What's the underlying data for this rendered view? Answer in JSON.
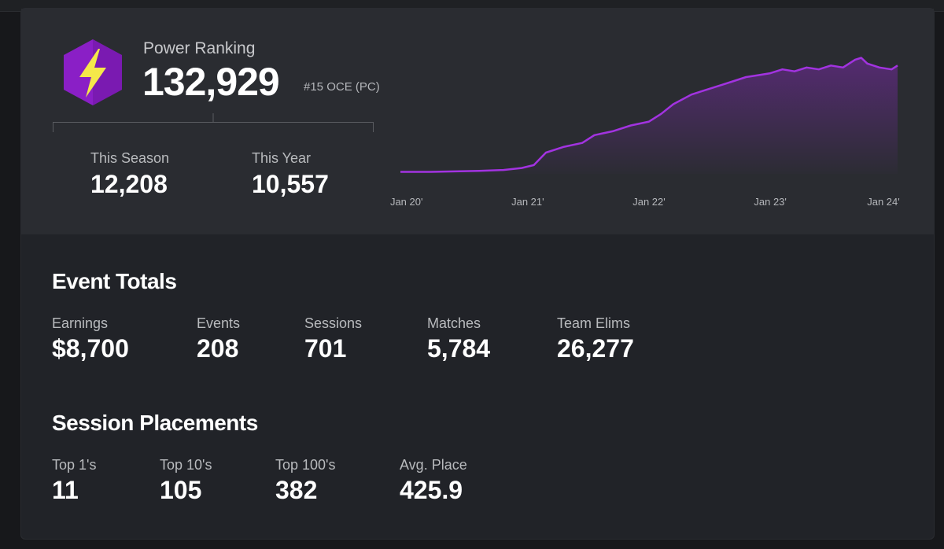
{
  "power_ranking": {
    "label": "Power Ranking",
    "value": "132,929",
    "rank": "#15 OCE (PC)",
    "this_season_label": "This Season",
    "this_season_value": "12,208",
    "this_year_label": "This Year",
    "this_year_value": "10,557",
    "badge_icon": "lightning-bolt-icon",
    "accent_color": "#8a1fc6",
    "bolt_color": "#f5e84a"
  },
  "chart_data": {
    "type": "area",
    "color": "#a233e0",
    "x_tick_labels": [
      "Jan 20'",
      "Jan 21'",
      "Jan 22'",
      "Jan 23'",
      "Jan 24'"
    ],
    "x": [
      2019.95,
      2020.2,
      2020.4,
      2020.6,
      2020.8,
      2020.95,
      2021.05,
      2021.15,
      2021.3,
      2021.45,
      2021.55,
      2021.7,
      2021.85,
      2022.0,
      2022.1,
      2022.2,
      2022.35,
      2022.5,
      2022.6,
      2022.7,
      2022.8,
      2022.9,
      2023.0,
      2023.1,
      2023.2,
      2023.3,
      2023.4,
      2023.5,
      2023.6,
      2023.7,
      2023.75,
      2023.8,
      2023.9,
      2024.0,
      2024.05
    ],
    "y": [
      2,
      2,
      2.5,
      3,
      4,
      6,
      9,
      22,
      28,
      32,
      40,
      44,
      50,
      54,
      62,
      72,
      82,
      88,
      92,
      96,
      100,
      102,
      104,
      108,
      106,
      110,
      108,
      112,
      110,
      118,
      120,
      114,
      110,
      108,
      112
    ]
  },
  "event_totals": {
    "title": "Event Totals",
    "stats": [
      {
        "label": "Earnings",
        "value": "$8,700"
      },
      {
        "label": "Events",
        "value": "208"
      },
      {
        "label": "Sessions",
        "value": "701"
      },
      {
        "label": "Matches",
        "value": "5,784"
      },
      {
        "label": "Team Elims",
        "value": "26,277"
      }
    ]
  },
  "session_placements": {
    "title": "Session Placements",
    "stats": [
      {
        "label": "Top 1's",
        "value": "11"
      },
      {
        "label": "Top 10's",
        "value": "105"
      },
      {
        "label": "Top 100's",
        "value": "382"
      },
      {
        "label": "Avg. Place",
        "value": "425.9"
      }
    ]
  }
}
